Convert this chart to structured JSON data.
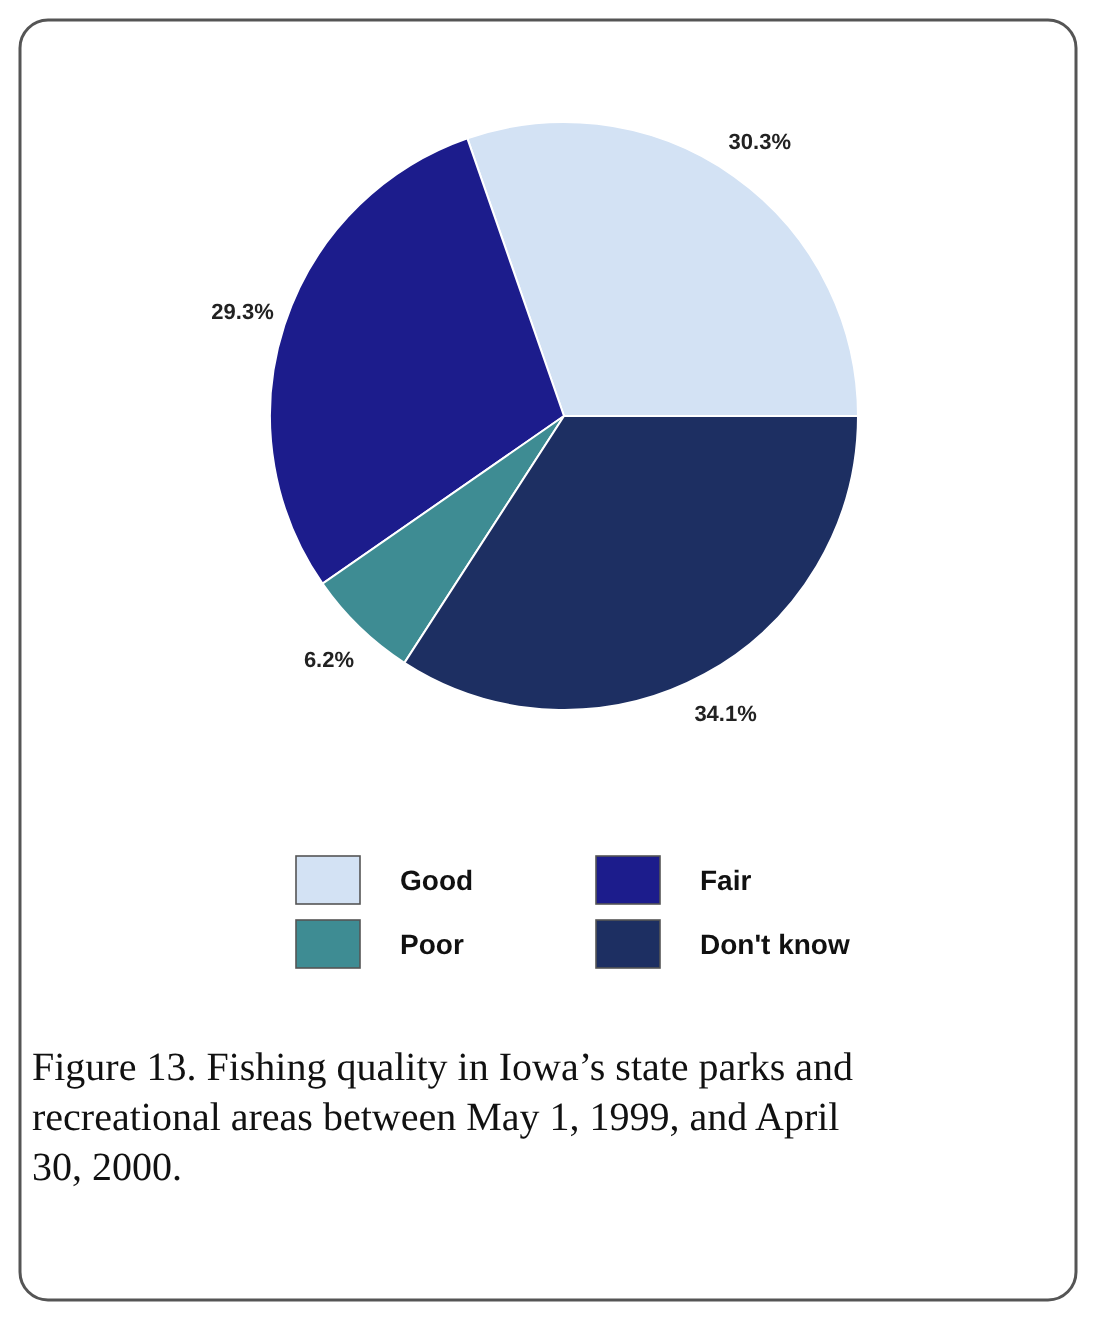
{
  "chart_data": {
    "type": "pie",
    "categories": [
      "Good",
      "Fair",
      "Poor",
      "Don't know"
    ],
    "values": [
      30.3,
      29.3,
      6.2,
      34.1
    ],
    "colors": [
      "#d3e2f4",
      "#1c1c8c",
      "#3e8c93",
      "#1d2f62"
    ],
    "data_labels": true,
    "value_labels": [
      "30.3%",
      "29.3%",
      "6.2%",
      "34.1%"
    ],
    "legend": "bottom",
    "annotations": [
      "Figure 13. Fishing quality in Iowa’s state parks and recreational areas between May 1, 1999, and April 30, 2000."
    ]
  }
}
